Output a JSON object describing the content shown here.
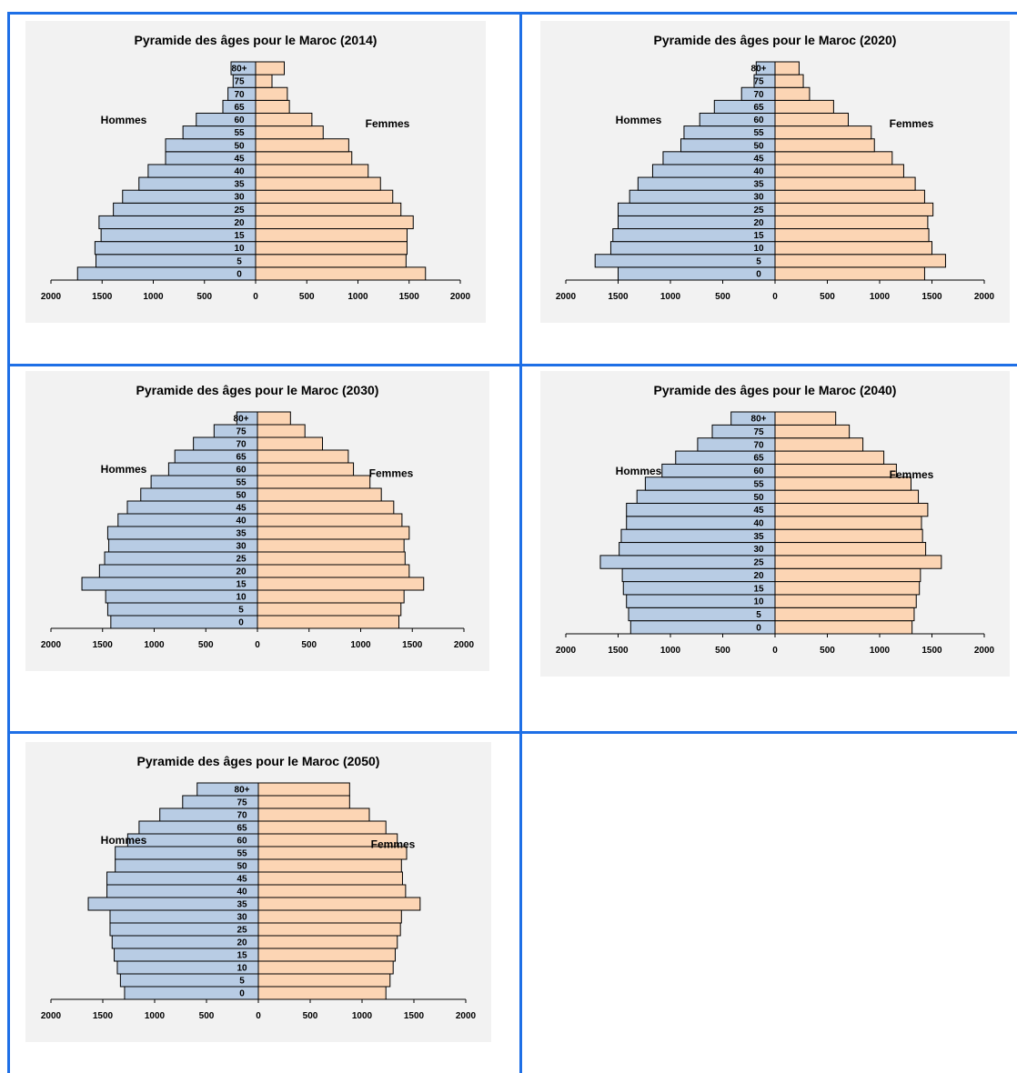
{
  "colors": {
    "male": "#b8cce4",
    "female": "#fcd5b4",
    "stroke": "#000000",
    "panel": "#f2f2f2",
    "grid": "#1e6fe6"
  },
  "chart_data": [
    {
      "type": "bar",
      "title": "Pyramide des âges pour le Maroc (2014)",
      "left_label": "Hommes",
      "right_label": "Femmes",
      "xlim": [
        -2000,
        2000
      ],
      "xticks": [
        "2000",
        "1500",
        "1000",
        "500",
        "0",
        "500",
        "1000",
        "1500",
        "2000"
      ],
      "categories": [
        "0",
        "5",
        "10",
        "15",
        "20",
        "25",
        "30",
        "35",
        "40",
        "45",
        "50",
        "55",
        "60",
        "65",
        "70",
        "75",
        "80+"
      ],
      "series": [
        {
          "name": "Hommes",
          "values": [
            1740,
            1560,
            1570,
            1510,
            1530,
            1390,
            1300,
            1140,
            1050,
            880,
            880,
            710,
            580,
            320,
            270,
            220,
            240
          ]
        },
        {
          "name": "Femmes",
          "values": [
            1660,
            1470,
            1480,
            1480,
            1540,
            1420,
            1340,
            1220,
            1100,
            940,
            910,
            660,
            550,
            330,
            310,
            160,
            280
          ]
        }
      ]
    },
    {
      "type": "bar",
      "title": "Pyramide des âges pour le Maroc (2020)",
      "left_label": "Hommes",
      "right_label": "Femmes",
      "xlim": [
        -2000,
        2000
      ],
      "xticks": [
        "2000",
        "1500",
        "1000",
        "500",
        "0",
        "500",
        "1000",
        "1500",
        "2000"
      ],
      "categories": [
        "0",
        "5",
        "10",
        "15",
        "20",
        "25",
        "30",
        "35",
        "40",
        "45",
        "50",
        "55",
        "60",
        "65",
        "70",
        "75",
        "80+"
      ],
      "series": [
        {
          "name": "Hommes",
          "values": [
            1500,
            1720,
            1570,
            1550,
            1500,
            1500,
            1390,
            1310,
            1170,
            1070,
            900,
            870,
            720,
            580,
            320,
            200,
            180
          ]
        },
        {
          "name": "Femmes",
          "values": [
            1430,
            1630,
            1500,
            1470,
            1460,
            1510,
            1430,
            1340,
            1230,
            1120,
            950,
            920,
            700,
            560,
            330,
            270,
            230
          ]
        }
      ]
    },
    {
      "type": "bar",
      "title": "Pyramide des âges pour le Maroc (2030)",
      "left_label": "Hommes",
      "right_label": "Femmes",
      "xlim": [
        -2000,
        2000
      ],
      "xticks": [
        "2000",
        "1500",
        "1000",
        "500",
        "0",
        "500",
        "1000",
        "1500",
        "2000"
      ],
      "categories": [
        "0",
        "5",
        "10",
        "15",
        "20",
        "25",
        "30",
        "35",
        "40",
        "45",
        "50",
        "55",
        "60",
        "65",
        "70",
        "75",
        "80+"
      ],
      "series": [
        {
          "name": "Hommes",
          "values": [
            1420,
            1450,
            1470,
            1700,
            1530,
            1480,
            1440,
            1450,
            1350,
            1260,
            1130,
            1030,
            860,
            800,
            620,
            420,
            200
          ]
        },
        {
          "name": "Femmes",
          "values": [
            1370,
            1390,
            1420,
            1610,
            1470,
            1430,
            1420,
            1470,
            1400,
            1320,
            1200,
            1090,
            930,
            880,
            630,
            460,
            320
          ]
        }
      ]
    },
    {
      "type": "bar",
      "title": "Pyramide des âges pour le Maroc (2040)",
      "left_label": "Hommes",
      "right_label": "Femmes",
      "xlim": [
        -2000,
        2000
      ],
      "xticks": [
        "2000",
        "1500",
        "1000",
        "500",
        "0",
        "500",
        "1000",
        "1500",
        "2000"
      ],
      "categories": [
        "0",
        "5",
        "10",
        "15",
        "20",
        "25",
        "30",
        "35",
        "40",
        "45",
        "50",
        "55",
        "60",
        "65",
        "70",
        "75",
        "80+"
      ],
      "series": [
        {
          "name": "Hommes",
          "values": [
            1380,
            1400,
            1420,
            1450,
            1460,
            1670,
            1490,
            1470,
            1420,
            1420,
            1320,
            1240,
            1080,
            950,
            740,
            600,
            420
          ]
        },
        {
          "name": "Femmes",
          "values": [
            1310,
            1330,
            1350,
            1380,
            1390,
            1590,
            1440,
            1410,
            1400,
            1460,
            1370,
            1300,
            1160,
            1040,
            840,
            710,
            580
          ]
        }
      ]
    },
    {
      "type": "bar",
      "title": "Pyramide des âges pour le Maroc (2050)",
      "left_label": "Hommes",
      "right_label": "Femmes",
      "xlim": [
        -2000,
        2000
      ],
      "xticks": [
        "2000",
        "1500",
        "1000",
        "500",
        "0",
        "500",
        "1000",
        "1500",
        "2000"
      ],
      "categories": [
        "0",
        "5",
        "10",
        "15",
        "20",
        "25",
        "30",
        "35",
        "40",
        "45",
        "50",
        "55",
        "60",
        "65",
        "70",
        "75",
        "80+"
      ],
      "series": [
        {
          "name": "Hommes",
          "values": [
            1290,
            1330,
            1360,
            1390,
            1410,
            1430,
            1430,
            1640,
            1460,
            1460,
            1380,
            1380,
            1260,
            1150,
            950,
            730,
            590
          ]
        },
        {
          "name": "Femmes",
          "values": [
            1230,
            1270,
            1300,
            1320,
            1340,
            1370,
            1380,
            1560,
            1420,
            1390,
            1380,
            1430,
            1340,
            1230,
            1070,
            880,
            880
          ]
        }
      ]
    }
  ]
}
